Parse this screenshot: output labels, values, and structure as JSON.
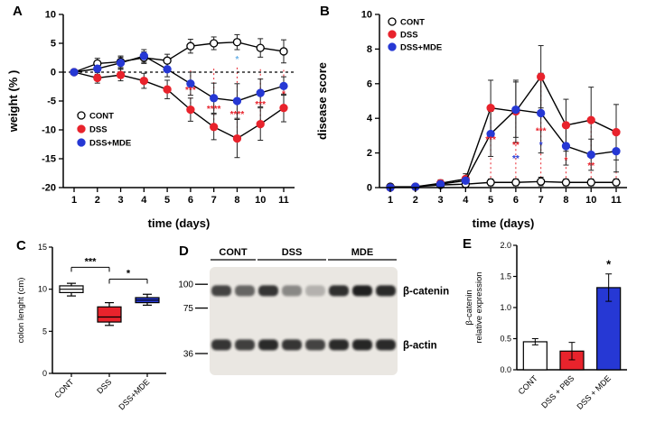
{
  "panels": {
    "a": {
      "label": "A"
    },
    "b": {
      "label": "B"
    },
    "c": {
      "label": "C"
    },
    "d": {
      "label": "D"
    },
    "e": {
      "label": "E"
    }
  },
  "colors": {
    "red": "#e8232c",
    "blue": "#2638d4",
    "black": "#000000",
    "white": "#ffffff"
  },
  "chart_data": [
    {
      "id": "chart-a",
      "panel": "A",
      "type": "line",
      "xlabel": "time (days)",
      "ylabel": "weight (% )",
      "x_labels": [
        "1",
        "2",
        "3",
        "4",
        "5",
        "6",
        "7",
        "8",
        "10",
        "11"
      ],
      "ylim": [
        -20,
        10
      ],
      "yticks": [
        -20,
        -15,
        -10,
        -5,
        0,
        5,
        10
      ],
      "zeroline": 0,
      "legend_position": "bottom-left",
      "series": [
        {
          "name": "CONT",
          "marker": "open",
          "color": "#ffffff",
          "line_color": "#000000",
          "values": [
            0,
            1.5,
            1.8,
            2.5,
            2.0,
            4.5,
            5.0,
            5.2,
            4.2,
            3.6
          ],
          "errors": [
            0.4,
            0.9,
            1.0,
            1.0,
            1.1,
            1.2,
            1.1,
            1.3,
            1.6,
            2.0
          ]
        },
        {
          "name": "DSS",
          "marker": "filled",
          "color": "#e8232c",
          "line_color": "#000000",
          "values": [
            0,
            -1.0,
            -0.5,
            -1.5,
            -3.0,
            -6.5,
            -9.5,
            -11.5,
            -9.0,
            -6.2
          ],
          "errors": [
            0.4,
            0.9,
            1.0,
            1.3,
            1.6,
            2.0,
            2.2,
            3.3,
            2.8,
            2.4
          ]
        },
        {
          "name": "DSS+MDE",
          "marker": "filled",
          "color": "#2638d4",
          "line_color": "#000000",
          "values": [
            0,
            0.6,
            1.6,
            2.8,
            0.5,
            -2.0,
            -4.5,
            -5.0,
            -3.6,
            -2.4
          ],
          "errors": [
            0.4,
            1.0,
            1.0,
            1.1,
            1.3,
            2.0,
            2.6,
            3.0,
            2.4,
            1.6
          ]
        }
      ],
      "annotations": [
        {
          "xi": 5,
          "y": -3.6,
          "t": "***",
          "c": "#e8232c"
        },
        {
          "xi": 6,
          "y": -6.9,
          "t": "****",
          "c": "#e8232c"
        },
        {
          "xi": 7,
          "y": -7.8,
          "t": "****",
          "c": "#e8232c"
        },
        {
          "xi": 8,
          "y": -6.1,
          "t": "***",
          "c": "#e8232c"
        },
        {
          "xi": 9,
          "y": -4.3,
          "t": "*",
          "c": "#e8232c"
        },
        {
          "xi": 7,
          "y": 1.7,
          "t": "*",
          "c": "#6db3e8"
        }
      ],
      "vlines": [
        {
          "xi": 5,
          "y1": 0.3,
          "y2": -6.2,
          "c": "#e8232c"
        },
        {
          "xi": 6,
          "y1": 0.6,
          "y2": -9.2,
          "c": "#e8232c"
        },
        {
          "xi": 7,
          "y1": 0.8,
          "y2": -11.2,
          "c": "#e8232c"
        },
        {
          "xi": 8,
          "y1": 0.5,
          "y2": -8.7,
          "c": "#e8232c"
        },
        {
          "xi": 9,
          "y1": 0.4,
          "y2": -5.9,
          "c": "#e8232c"
        }
      ]
    },
    {
      "id": "chart-b",
      "panel": "B",
      "type": "line",
      "xlabel": "time (days)",
      "ylabel": "disease score",
      "x_labels": [
        "1",
        "2",
        "3",
        "4",
        "5",
        "6",
        "7",
        "8",
        "10",
        "11"
      ],
      "ylim": [
        0,
        10
      ],
      "yticks": [
        0,
        2,
        4,
        6,
        8,
        10
      ],
      "legend_position": "top-left",
      "series": [
        {
          "name": "CONT",
          "marker": "open",
          "color": "#ffffff",
          "line_color": "#000000",
          "values": [
            0.05,
            0.05,
            0.15,
            0.2,
            0.3,
            0.3,
            0.35,
            0.3,
            0.3,
            0.3
          ],
          "errors": [
            0,
            0,
            0.1,
            0.15,
            0.2,
            0.2,
            0.25,
            0.2,
            0.2,
            0.2
          ]
        },
        {
          "name": "DSS",
          "marker": "filled",
          "color": "#e8232c",
          "line_color": "#000000",
          "values": [
            0,
            0.05,
            0.25,
            0.5,
            4.6,
            4.4,
            6.4,
            3.6,
            3.9,
            3.2
          ],
          "errors": [
            0,
            0,
            0.2,
            0.3,
            1.6,
            1.8,
            1.8,
            1.5,
            1.9,
            1.6
          ]
        },
        {
          "name": "DSS+MDE",
          "marker": "filled",
          "color": "#2638d4",
          "line_color": "#000000",
          "values": [
            0,
            0.05,
            0.2,
            0.4,
            3.1,
            4.5,
            4.3,
            2.4,
            1.9,
            2.1
          ],
          "errors": [
            0,
            0,
            0.15,
            0.25,
            1.3,
            1.6,
            2.3,
            1.1,
            0.9,
            1.2
          ]
        }
      ],
      "annotations": [
        {
          "xi": 4,
          "y": 2.6,
          "t": "***",
          "c": "#e8232c"
        },
        {
          "xi": 5,
          "y": 2.3,
          "t": "**",
          "c": "#e8232c"
        },
        {
          "xi": 5,
          "y": 1.5,
          "t": "**",
          "c": "#2638d4"
        },
        {
          "xi": 6,
          "y": 3.1,
          "t": "***",
          "c": "#e8232c"
        },
        {
          "xi": 6,
          "y": 2.3,
          "t": "*",
          "c": "#2638d4"
        },
        {
          "xi": 7,
          "y": 1.4,
          "t": "*",
          "c": "#e8232c"
        },
        {
          "xi": 8,
          "y": 1.1,
          "t": "**",
          "c": "#e8232c"
        }
      ],
      "vlines": [
        {
          "xi": 4,
          "y1": 0.3,
          "y2": 4.4,
          "c": "#e8232c"
        },
        {
          "xi": 5,
          "y1": 0.3,
          "y2": 4.2,
          "c": "#e8232c"
        },
        {
          "xi": 6,
          "y1": 0.3,
          "y2": 6.2,
          "c": "#e8232c"
        },
        {
          "xi": 7,
          "y1": 0.3,
          "y2": 3.4,
          "c": "#e8232c"
        },
        {
          "xi": 8,
          "y1": 0.3,
          "y2": 3.7,
          "c": "#e8232c"
        },
        {
          "xi": 9,
          "y1": 0.3,
          "y2": 3.0,
          "c": "#e8232c"
        }
      ]
    },
    {
      "id": "chart-c",
      "panel": "C",
      "type": "box",
      "ylabel": "colon lenght (cm)",
      "ylim": [
        0,
        15
      ],
      "yticks": [
        0,
        5,
        10,
        15
      ],
      "groups": [
        {
          "label": "CONT",
          "fill": "#ffffff",
          "min": 9.2,
          "q1": 9.6,
          "median": 10.0,
          "q3": 10.4,
          "max": 10.7
        },
        {
          "label": "DSS",
          "fill": "#e8232c",
          "min": 5.7,
          "q1": 6.1,
          "median": 6.7,
          "q3": 7.9,
          "max": 8.4
        },
        {
          "label": "DSS+MDE",
          "fill": "#2638d4",
          "min": 8.1,
          "q1": 8.4,
          "median": 8.7,
          "q3": 9.0,
          "max": 9.4
        }
      ],
      "brackets": [
        {
          "i1": 0,
          "i2": 1,
          "y": 12.6,
          "t": "***"
        },
        {
          "i1": 1,
          "i2": 2,
          "y": 11.2,
          "t": "*"
        }
      ]
    },
    {
      "id": "chart-d",
      "panel": "D",
      "type": "blot",
      "group_labels": [
        {
          "label": "CONT",
          "lanes": 2
        },
        {
          "label": "DSS",
          "lanes": 3
        },
        {
          "label": "MDE",
          "lanes": 3
        }
      ],
      "mw_markers": [
        {
          "label": "100",
          "y": 0.16
        },
        {
          "label": "75",
          "y": 0.38
        },
        {
          "label": "36",
          "y": 0.8
        }
      ],
      "rows": [
        {
          "label": "β-catenin",
          "band_y": 0.22,
          "intensities": [
            0.78,
            0.62,
            0.85,
            0.45,
            0.25,
            0.88,
            0.95,
            0.9
          ]
        },
        {
          "label": "β-actin",
          "band_y": 0.72,
          "intensities": [
            0.85,
            0.8,
            0.9,
            0.85,
            0.78,
            0.9,
            0.92,
            0.9
          ]
        }
      ]
    },
    {
      "id": "chart-e",
      "panel": "E",
      "type": "bar",
      "ylabel_lines": [
        "β-catenin",
        "relative expression"
      ],
      "categories": [
        "CONT",
        "DSS + PBS",
        "DSS + MDE"
      ],
      "values": [
        0.45,
        0.3,
        1.32
      ],
      "errors": [
        0.05,
        0.14,
        0.22
      ],
      "fills": [
        "#ffffff",
        "#e8232c",
        "#2638d4"
      ],
      "ylim": [
        0,
        2
      ],
      "yticks": [
        "0.0",
        "0.5",
        "1.0",
        "1.5",
        "2.0"
      ],
      "annotations": [
        {
          "i": 2,
          "t": "*"
        }
      ]
    }
  ]
}
